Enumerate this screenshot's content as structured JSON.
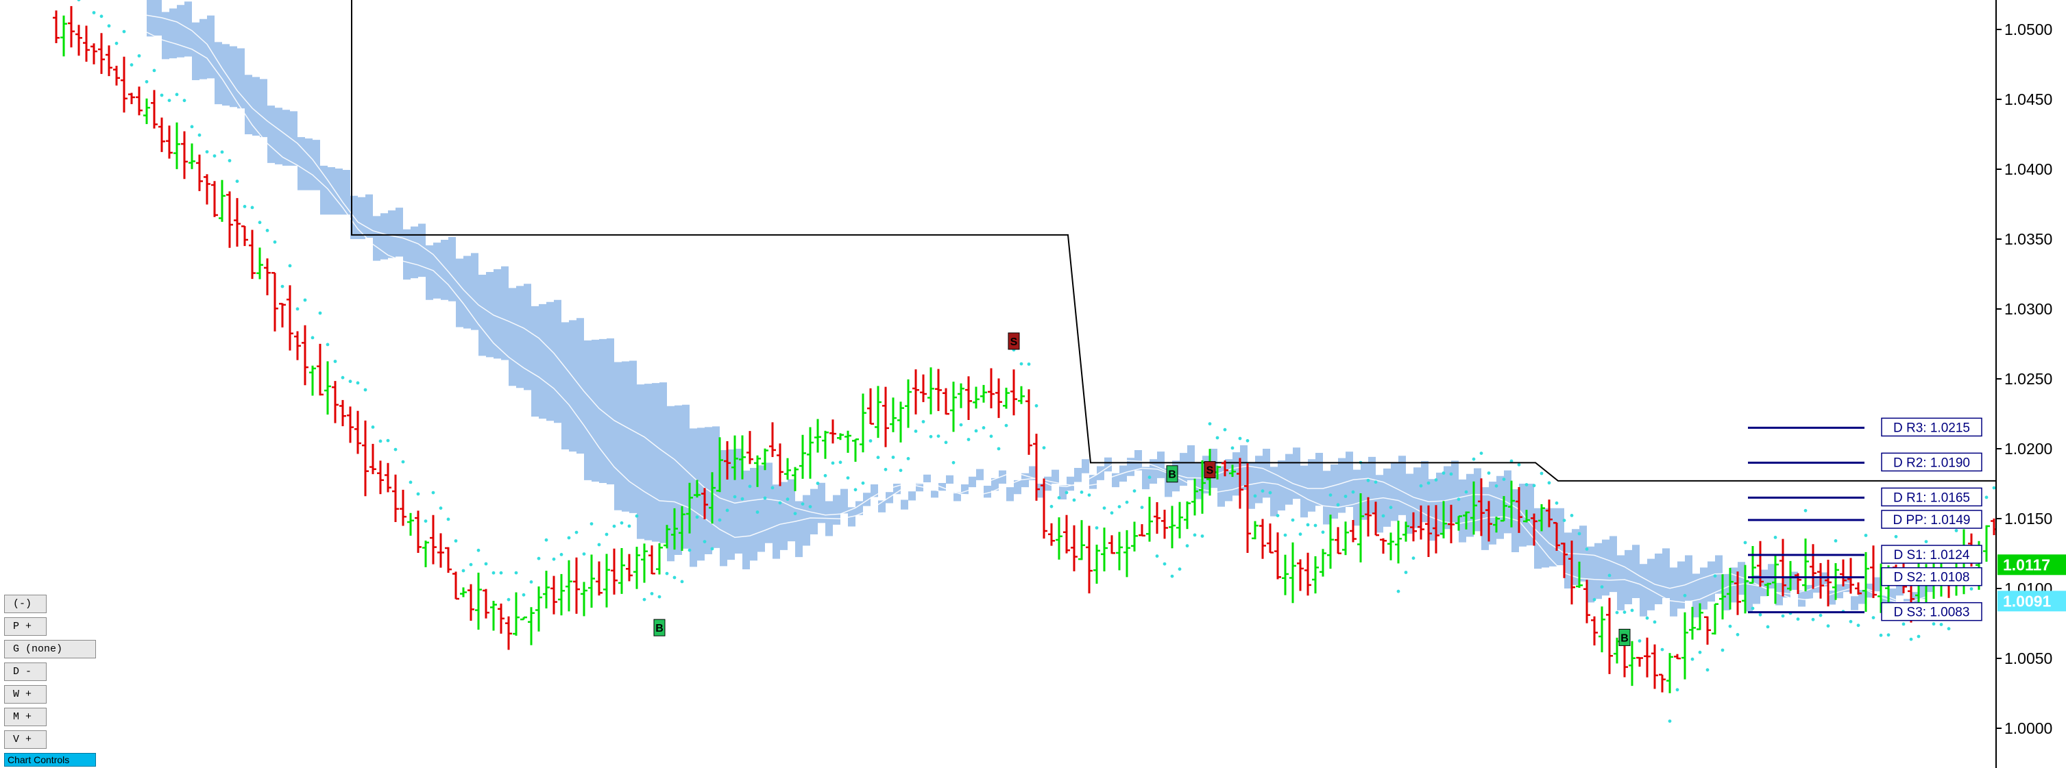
{
  "chart_data": {
    "type": "candlestick",
    "y_axis": {
      "ticks": [
        "1.0500",
        "1.0450",
        "1.0400",
        "1.0350",
        "1.0300",
        "1.0250",
        "1.0200",
        "1.0150",
        "1.0100",
        "1.0050",
        "1.0000"
      ],
      "range": [
        0.9965,
        1.0525
      ],
      "position": "right"
    },
    "price_labels": [
      {
        "text": "1.0117",
        "value": 1.0117,
        "color": "#00d200"
      },
      {
        "text": "1.0091",
        "value": 1.0091,
        "color": "#5ee9ff"
      }
    ],
    "pivot_levels": [
      {
        "label": "D R3: 1.0215",
        "value": 1.0215
      },
      {
        "label": "D R2: 1.0190",
        "value": 1.019
      },
      {
        "label": "D R1: 1.0165",
        "value": 1.0165
      },
      {
        "label": "D PP: 1.0149",
        "value": 1.0149
      },
      {
        "label": "D S1: 1.0124",
        "value": 1.0124
      },
      {
        "label": "D S2: 1.0108",
        "value": 1.0108
      },
      {
        "label": "D S3: 1.0083",
        "value": 1.0083
      }
    ],
    "signals": [
      {
        "text": "B",
        "type": "buy",
        "bar": 80,
        "price": 1.0072
      },
      {
        "text": "S",
        "type": "sell",
        "bar": 127,
        "price": 1.0277
      },
      {
        "text": "B",
        "type": "buy",
        "bar": 148,
        "price": 1.0182
      },
      {
        "text": "S",
        "type": "sell",
        "bar": 153,
        "price": 1.0185
      },
      {
        "text": "B",
        "type": "buy",
        "bar": 208,
        "price": 1.0065
      }
    ],
    "bar_count": 230,
    "colors": {
      "up": "#00e000",
      "down": "#e00000",
      "cloud": "#a3c4eb",
      "psar": "#33dddd",
      "stop_line": "#000000",
      "pivot": "#000080"
    }
  },
  "panel": {
    "buttons": [
      "(-)",
      "P +",
      "G (none)",
      "D -",
      "W +",
      "M +",
      "V +"
    ],
    "bottom_button": "Chart Controls"
  }
}
